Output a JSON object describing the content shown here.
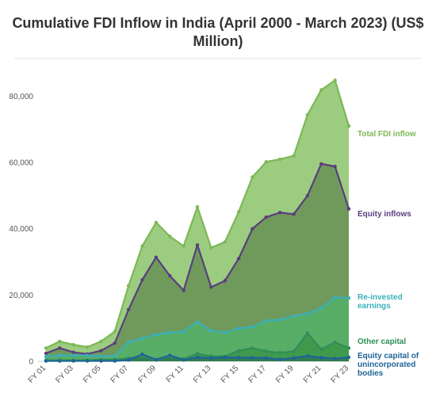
{
  "title_line1": "Cumulative FDI Inflow in India (April 2000 - March 2023) (US$",
  "title_line2": "Million)",
  "chart_data": {
    "type": "area",
    "title": "Cumulative FDI Inflow in India (April 2000 - March 2023) (US$ Million)",
    "xlabel": "",
    "ylabel": "",
    "ylim": [
      0,
      88000
    ],
    "yticks": [
      0,
      20000,
      40000,
      60000,
      80000
    ],
    "ytick_labels": [
      "0",
      "20,000",
      "40,000",
      "60,000",
      "80,000"
    ],
    "grid": false,
    "legend": "inline labels at right end of series",
    "x_tick_labels": [
      "FY 01",
      "FY 03",
      "FY 05",
      "FY 07",
      "FY 09",
      "FY 11",
      "FY 13",
      "FY 15",
      "FY 17",
      "FY 19",
      "FY 21",
      "FY 23"
    ],
    "categories": [
      "FY 01",
      "FY 02",
      "FY 03",
      "FY 04",
      "FY 05",
      "FY 06",
      "FY 07",
      "FY 08",
      "FY 09",
      "FY 10",
      "FY 11",
      "FY 12",
      "FY 13",
      "FY 14",
      "FY 15",
      "FY 16",
      "FY 17",
      "FY 18",
      "FY 19",
      "FY 20",
      "FY 21",
      "FY 22",
      "FY 23"
    ],
    "series": [
      {
        "name": "Total FDI inflow",
        "label_lines": [
          "Total FDI inflow"
        ],
        "color": "#7bb855",
        "fill": "#9ccc80",
        "values": [
          4000,
          6000,
          5000,
          4300,
          6000,
          9000,
          22800,
          34800,
          41900,
          37700,
          34800,
          46600,
          34300,
          36000,
          45100,
          55600,
          60200,
          61000,
          62000,
          74400,
          81900,
          84800,
          71000
        ]
      },
      {
        "name": "Equity inflows",
        "label_lines": [
          "Equity inflows"
        ],
        "color": "#5a3e7d",
        "fill": "#6f9a5c",
        "values": [
          2400,
          4000,
          2700,
          2200,
          3200,
          5500,
          15600,
          24600,
          31400,
          25800,
          21400,
          35100,
          22400,
          24300,
          31000,
          40000,
          43500,
          44900,
          44400,
          50000,
          59600,
          58800,
          46000
        ]
      },
      {
        "name": "Re-invested earnings",
        "label_lines": [
          "Re-invested",
          "earnings"
        ],
        "color": "#3ab0b8",
        "fill": "#58ad67",
        "values": [
          1400,
          1800,
          1800,
          1800,
          1500,
          1600,
          5800,
          6900,
          8100,
          8700,
          8900,
          11900,
          9200,
          8700,
          9900,
          10400,
          12300,
          12500,
          13700,
          14300,
          16100,
          19300,
          19100
        ]
      },
      {
        "name": "Other capital",
        "label_lines": [
          "Other capital"
        ],
        "color": "#2e8f57",
        "fill": "#3f9a4e",
        "values": [
          300,
          300,
          300,
          300,
          500,
          500,
          900,
          1500,
          400,
          1600,
          700,
          2300,
          1500,
          1500,
          3200,
          4000,
          3000,
          2600,
          3000,
          8500,
          3600,
          5700,
          4000
        ]
      },
      {
        "name": "Equity capital of unincorporated bodies",
        "label_lines": [
          "Equity capital of",
          "unincorporated",
          "bodies"
        ],
        "color": "#1e6496",
        "fill": "#2f7d52",
        "values": [
          100,
          100,
          100,
          100,
          100,
          100,
          400,
          2100,
          500,
          1800,
          400,
          1200,
          1000,
          1200,
          1100,
          1100,
          1000,
          600,
          1000,
          1600,
          1100,
          800,
          1200
        ]
      }
    ]
  }
}
